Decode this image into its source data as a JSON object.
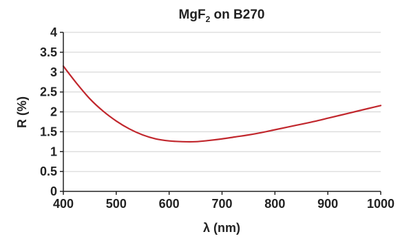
{
  "chart_data": {
    "type": "line",
    "title": {
      "prefix": "MgF",
      "subscript": "2",
      "suffix": " on B270"
    },
    "xlabel": "λ (nm)",
    "ylabel": "R (%)",
    "xlim": [
      400,
      1000
    ],
    "ylim": [
      0,
      4
    ],
    "xticks": [
      400,
      500,
      600,
      700,
      800,
      900,
      1000
    ],
    "yticks": [
      0,
      0.5,
      1,
      1.5,
      2,
      2.5,
      3,
      3.5,
      4
    ],
    "ytick_labels": [
      "0",
      "0.5",
      "1",
      "1.5",
      "2",
      "2.5",
      "3",
      "3.5",
      "4"
    ],
    "grid": "horizontal",
    "legend": "none",
    "line_color": "#c1272d",
    "grid_color": "#d0d0d0",
    "axis_color": "#222222",
    "series": [
      {
        "x": [
          400,
          425,
          450,
          475,
          500,
          525,
          550,
          575,
          600,
          625,
          650,
          675,
          700,
          725,
          750,
          775,
          800,
          825,
          850,
          875,
          900,
          925,
          950,
          975,
          1000
        ],
        "y": [
          3.15,
          2.72,
          2.33,
          2.02,
          1.77,
          1.57,
          1.42,
          1.32,
          1.27,
          1.25,
          1.25,
          1.28,
          1.32,
          1.37,
          1.42,
          1.48,
          1.55,
          1.62,
          1.69,
          1.76,
          1.84,
          1.92,
          2.0,
          2.08,
          2.16
        ]
      }
    ]
  }
}
